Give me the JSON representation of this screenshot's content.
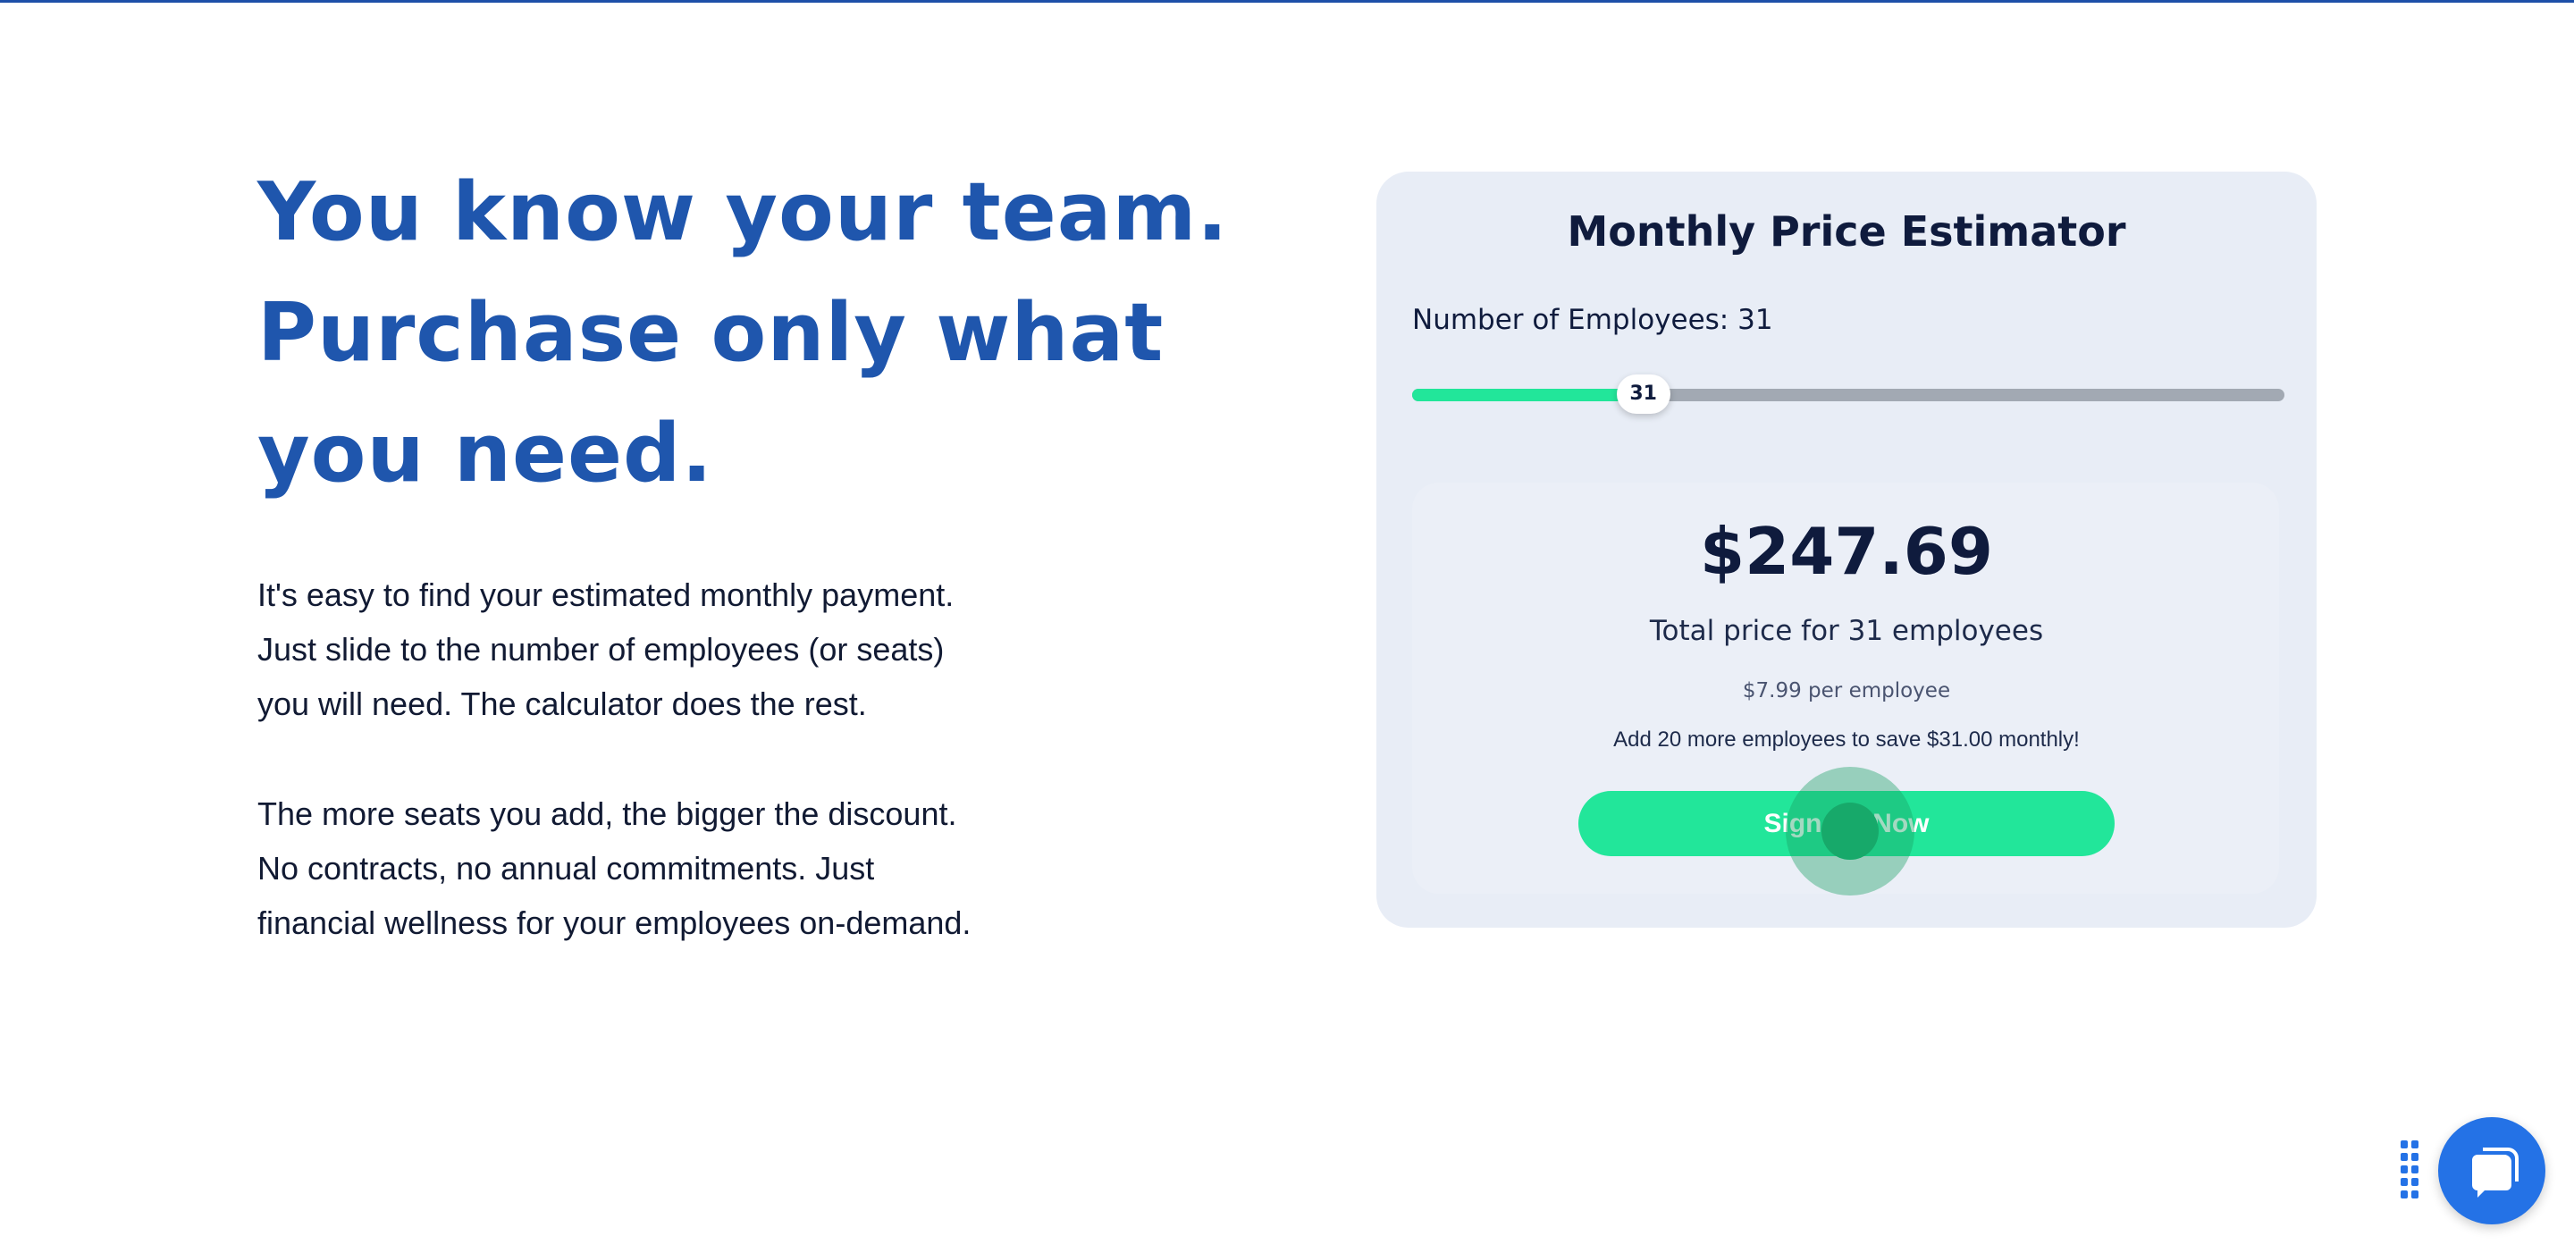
{
  "hero": {
    "lines": [
      "You know your team.",
      "Purchase only what",
      "you need."
    ]
  },
  "intro": {
    "lines": [
      "It's easy to find your estimated monthly payment.",
      "Just slide to the number of employees (or seats)",
      "you will need. The calculator does the rest."
    ]
  },
  "discount": {
    "lines": [
      "The more seats you add, the bigger the discount.",
      "No contracts, no annual commitments. Just",
      "financial wellness for your employees on-demand."
    ]
  },
  "estimator": {
    "title": "Monthly Price Estimator",
    "label": "Number of Employees: 31",
    "slider": {
      "value": 31,
      "value_label": "31",
      "fill_fraction": 0.265
    },
    "price": "$247.69",
    "total_text": "Total price for 31 employees",
    "per_employee": "$7.99 per employee",
    "savings_text": "Add 20 more employees to save $31.00 monthly!",
    "button_label": "Sign Up Now"
  },
  "colors": {
    "accent": "#22e69a",
    "brand_blue": "#1f56ad",
    "chat_blue": "#2472e6"
  },
  "widgets": {
    "chat_icon": "chat-bubble-icon",
    "drag_icon": "drag-handle-icon"
  }
}
